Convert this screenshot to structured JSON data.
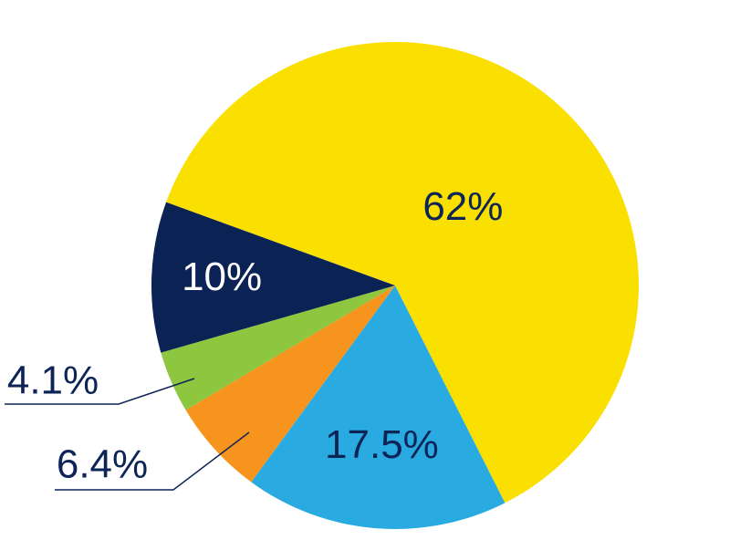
{
  "chart_data": {
    "type": "pie",
    "values": [
      62,
      17.5,
      6.4,
      4.1,
      10
    ],
    "value_labels": [
      "62%",
      "17.5%",
      "6.4%",
      "4.1%",
      "10%"
    ],
    "colors": [
      "#f9e000",
      "#29abe2",
      "#f7941d",
      "#8dc63f",
      "#0b2255"
    ],
    "label_colors": [
      "#0d2457",
      "#0d2457",
      "#0d2457",
      "#0d2457",
      "#ffffff"
    ]
  }
}
